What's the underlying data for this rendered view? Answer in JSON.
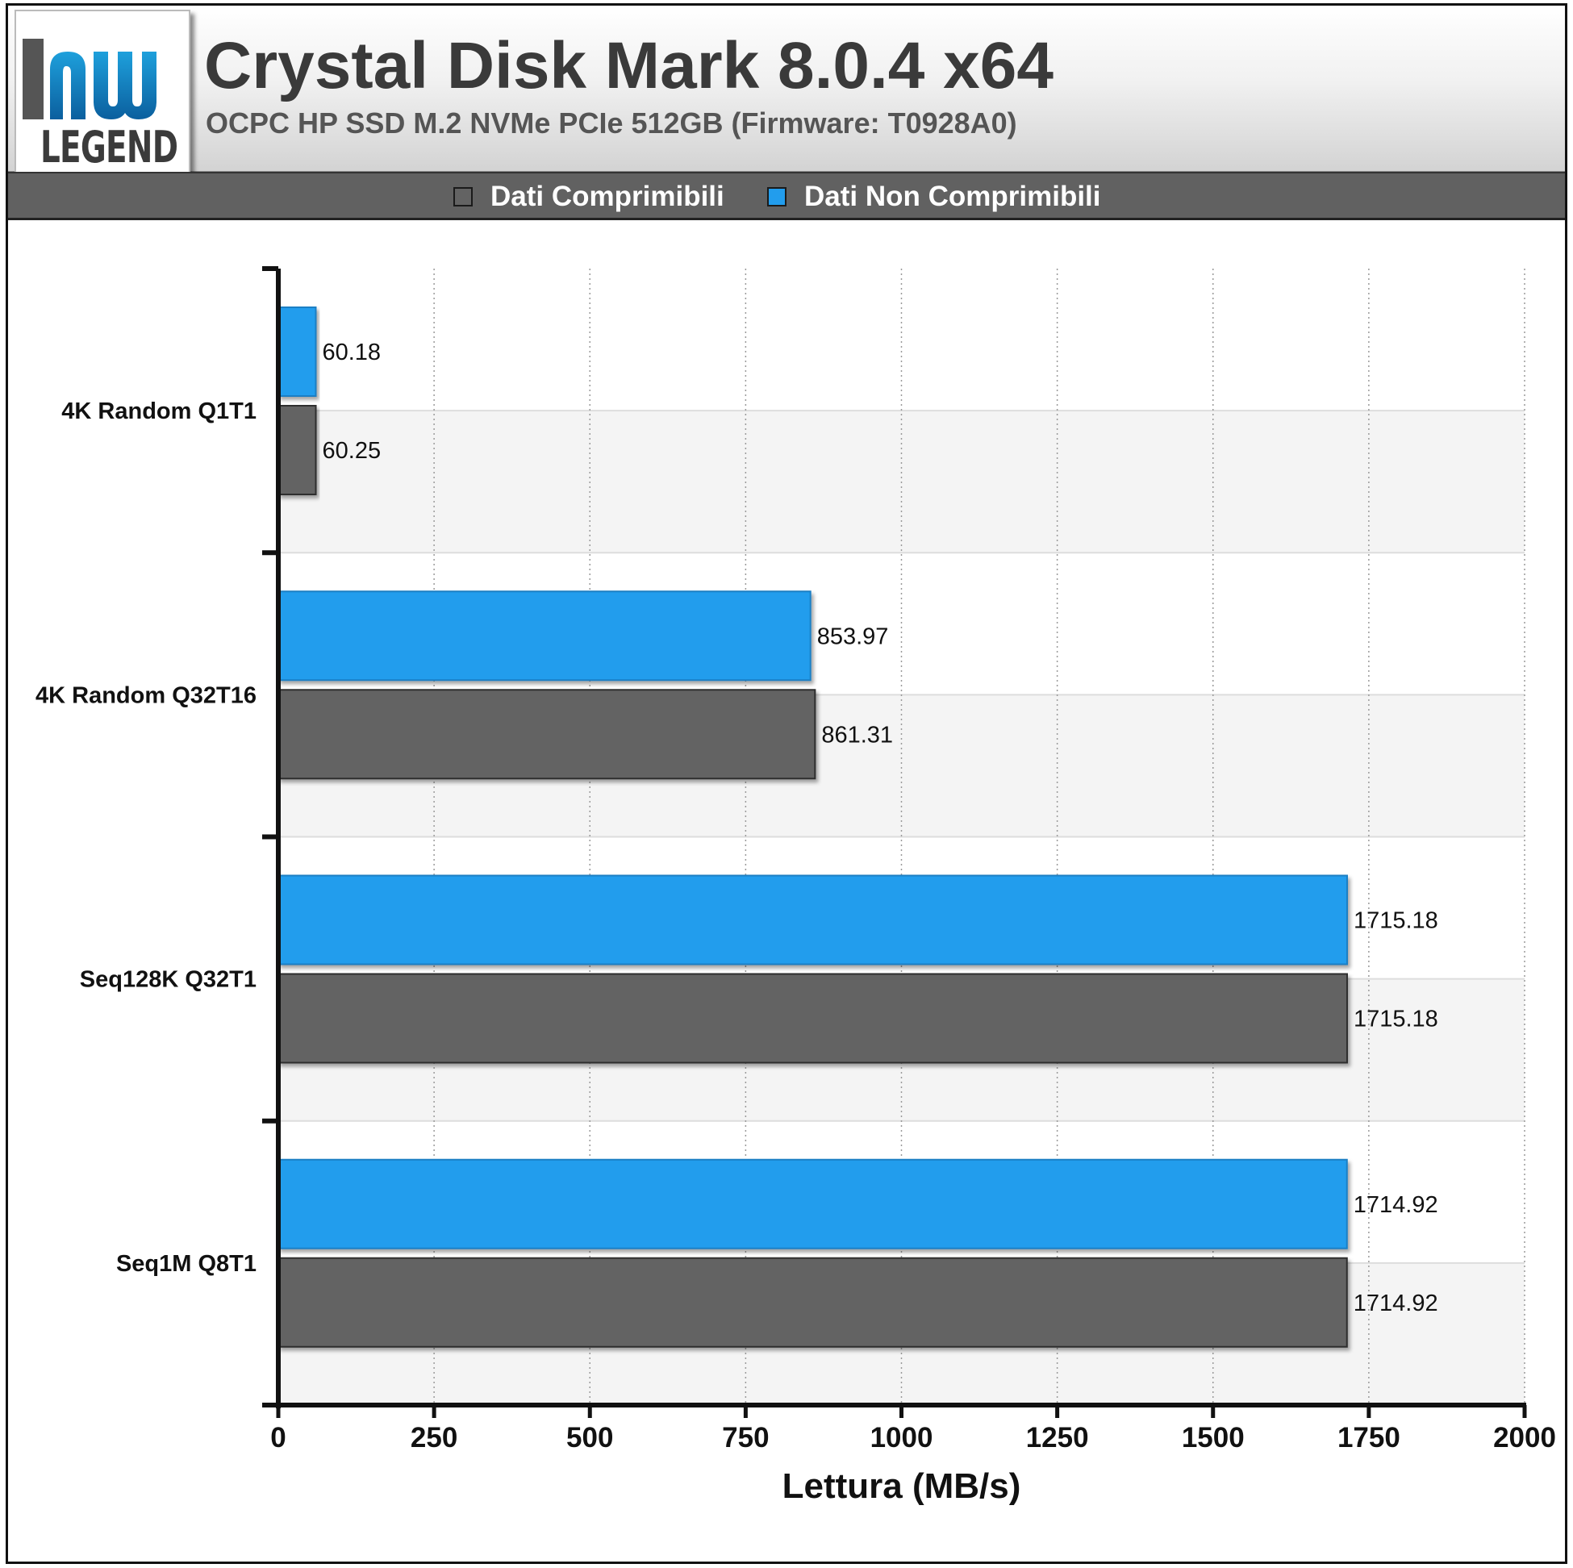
{
  "header": {
    "logo_text": "LEGEND",
    "title": "Crystal Disk Mark 8.0.4 x64",
    "subtitle": "OCPC HP SSD M.2 NVMe PCIe 512GB (Firmware: T0928A0)"
  },
  "legend": {
    "items": [
      {
        "label": "Dati Comprimibili",
        "color": "#636363"
      },
      {
        "label": "Dati Non Comprimibili",
        "color": "#229ded"
      }
    ]
  },
  "chart_data": {
    "type": "bar",
    "orientation": "horizontal",
    "categories": [
      "4K Random Q1T1",
      "4K Random Q32T16",
      "Seq128K Q32T1",
      "Seq1M Q8T1"
    ],
    "series": [
      {
        "name": "Dati Non Comprimibili",
        "color": "#229ded",
        "values": [
          60.18,
          853.97,
          1715.18,
          1714.92
        ],
        "labels": [
          "60.18",
          "853.97",
          "1715.18",
          "1714.92"
        ]
      },
      {
        "name": "Dati Comprimibili",
        "color": "#636363",
        "values": [
          60.25,
          861.31,
          1715.18,
          1714.92
        ],
        "labels": [
          "60.25",
          "861.31",
          "1715.18",
          "1714.92"
        ]
      }
    ],
    "xlabel": "Lettura (MB/s)",
    "ylabel": "",
    "xlim": [
      0,
      2000
    ],
    "ticks": [
      "0",
      "250",
      "500",
      "750",
      "1000",
      "1250",
      "1500",
      "1750",
      "2000"
    ],
    "grid": "vertical dotted",
    "legend_position": "top"
  }
}
